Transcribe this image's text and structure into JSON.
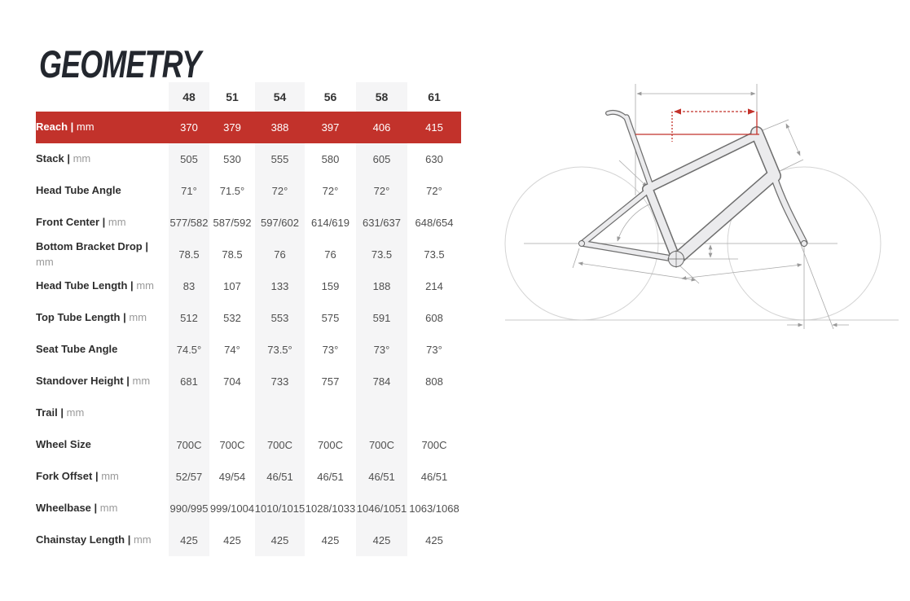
{
  "page": {
    "title": "GEOMETRY"
  },
  "table": {
    "separator": "|",
    "sizes": [
      "48",
      "51",
      "54",
      "56",
      "58",
      "61"
    ],
    "rows": [
      {
        "label": "Reach",
        "unit": "mm",
        "highlight": true,
        "values": [
          "370",
          "379",
          "388",
          "397",
          "406",
          "415"
        ]
      },
      {
        "label": "Stack",
        "unit": "mm",
        "values": [
          "505",
          "530",
          "555",
          "580",
          "605",
          "630"
        ]
      },
      {
        "label": "Head Tube Angle",
        "unit": "",
        "values": [
          "71°",
          "71.5°",
          "72°",
          "72°",
          "72°",
          "72°"
        ]
      },
      {
        "label": "Front Center",
        "unit": "mm",
        "values": [
          "577/582",
          "587/592",
          "597/602",
          "614/619",
          "631/637",
          "648/654"
        ]
      },
      {
        "label": "Bottom Bracket Drop",
        "unit": "mm",
        "values": [
          "78.5",
          "78.5",
          "76",
          "76",
          "73.5",
          "73.5"
        ]
      },
      {
        "label": "Head Tube Length",
        "unit": "mm",
        "values": [
          "83",
          "107",
          "133",
          "159",
          "188",
          "214"
        ]
      },
      {
        "label": "Top Tube Length",
        "unit": "mm",
        "values": [
          "512",
          "532",
          "553",
          "575",
          "591",
          "608"
        ]
      },
      {
        "label": "Seat Tube Angle",
        "unit": "",
        "values": [
          "74.5°",
          "74°",
          "73.5°",
          "73°",
          "73°",
          "73°"
        ]
      },
      {
        "label": "Standover Height",
        "unit": "mm",
        "values": [
          "681",
          "704",
          "733",
          "757",
          "784",
          "808"
        ]
      },
      {
        "label": "Trail",
        "unit": "mm",
        "values": [
          "",
          "",
          "",
          "",
          "",
          ""
        ]
      },
      {
        "label": "Wheel Size",
        "unit": "",
        "values": [
          "700C",
          "700C",
          "700C",
          "700C",
          "700C",
          "700C"
        ]
      },
      {
        "label": "Fork Offset",
        "unit": "mm",
        "values": [
          "52/57",
          "49/54",
          "46/51",
          "46/51",
          "46/51",
          "46/51"
        ]
      },
      {
        "label": "Wheelbase",
        "unit": "mm",
        "values": [
          "990/995",
          "999/1004",
          "1010/1015",
          "1028/1033",
          "1046/1051",
          "1063/1068"
        ]
      },
      {
        "label": "Chainstay Length",
        "unit": "mm",
        "values": [
          "425",
          "425",
          "425",
          "425",
          "425",
          "425"
        ]
      }
    ]
  },
  "colors": {
    "accent": "#c2322b",
    "row_stripe": "#f5f5f6",
    "label_text": "#2e2e2e",
    "unit_text": "#9a9a9a",
    "value_text": "#4f4f4f",
    "title_text": "#23272e",
    "diagram_dim_line": "#a9a9a9",
    "diagram_wheel_line": "#d4d4d4",
    "diagram_frame_fill": "#ebebed",
    "diagram_frame_outline": "#6e6e6e"
  },
  "diagram": {
    "description": "bike-frame-geometry-line-drawing",
    "highlighted_dimension": "reach"
  }
}
